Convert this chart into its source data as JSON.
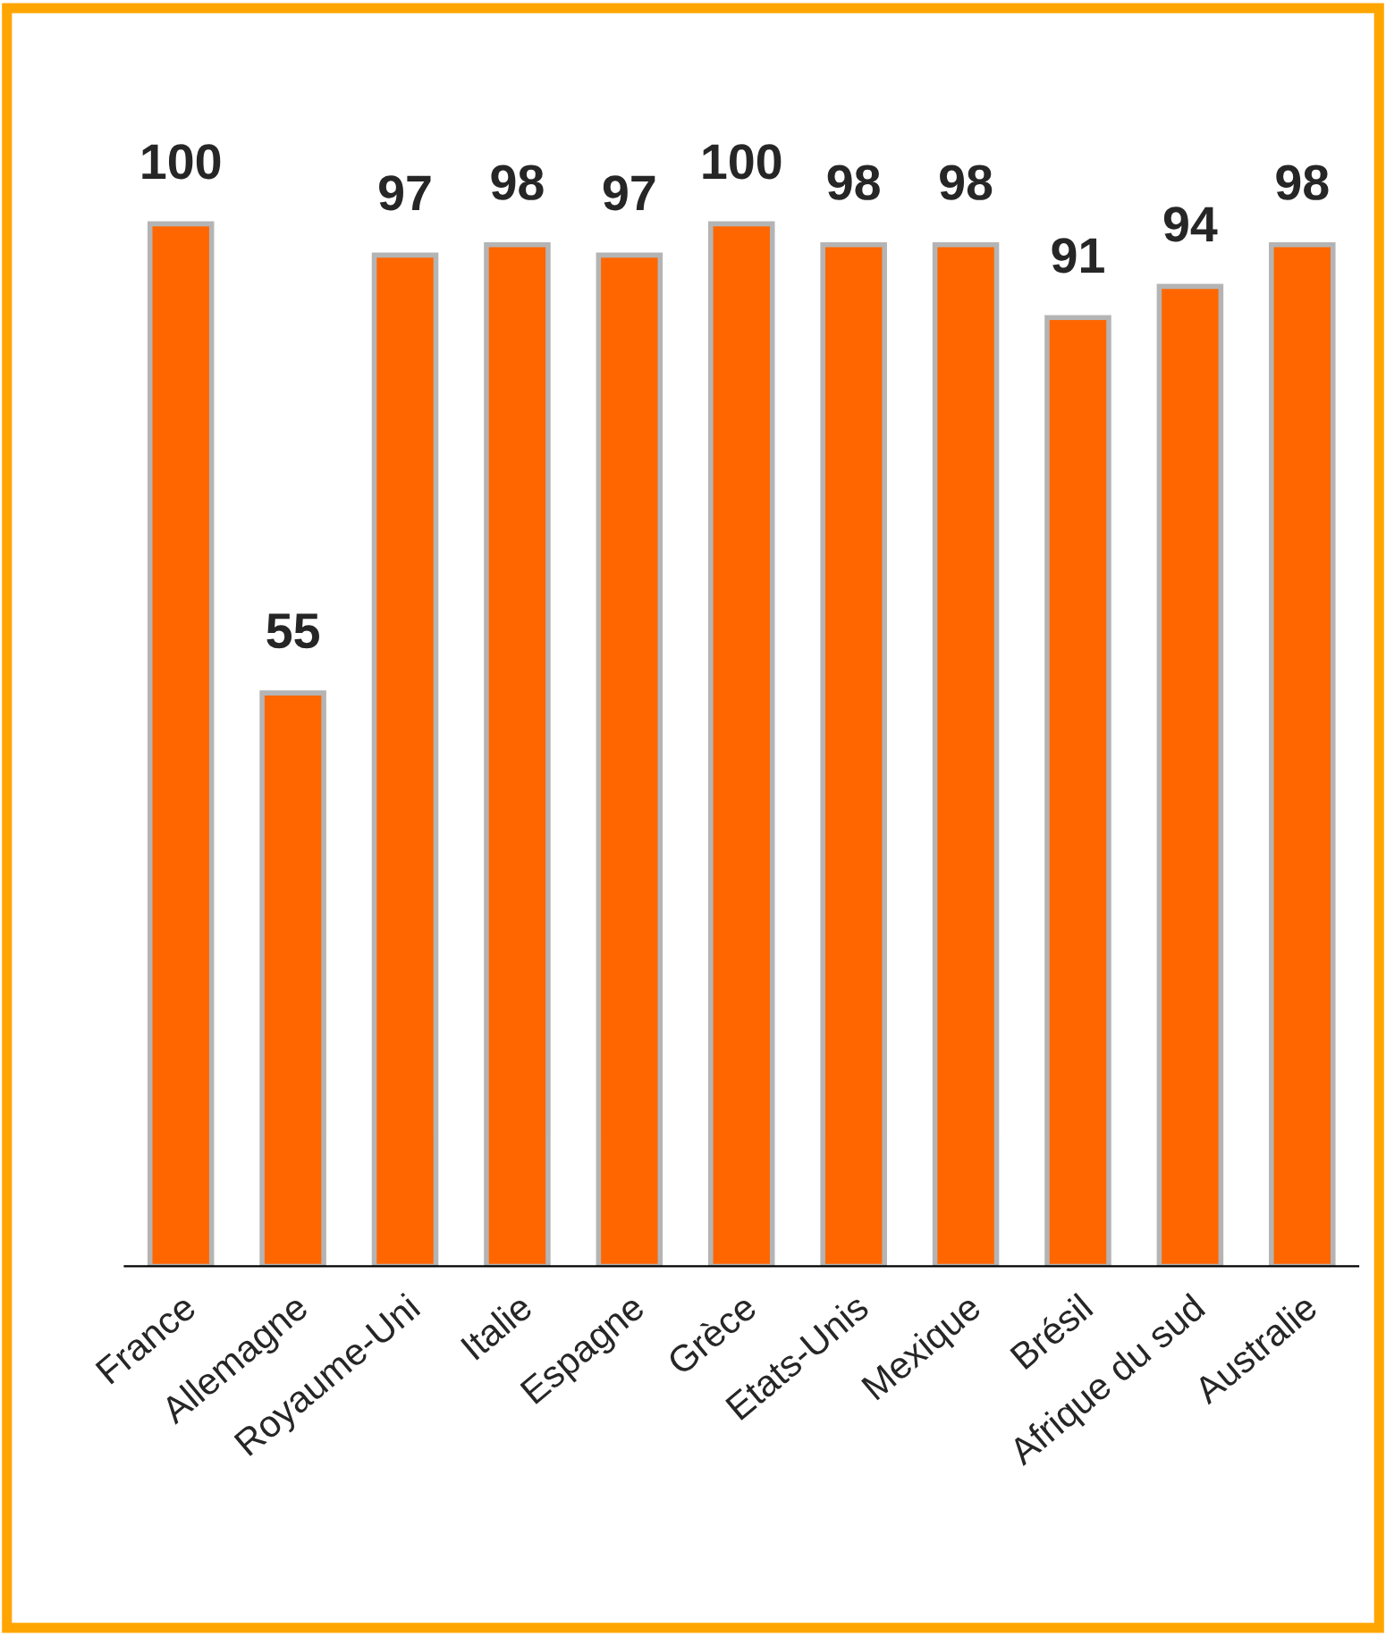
{
  "chart_data": {
    "type": "bar",
    "categories": [
      "France",
      "Allemagne",
      "Royaume-Uni",
      "Italie",
      "Espagne",
      "Grèce",
      "Etats-Unis",
      "Mexique",
      "Brésil",
      "Afrique du sud",
      "Australie"
    ],
    "values": [
      100,
      55,
      97,
      98,
      97,
      100,
      98,
      98,
      91,
      94,
      98
    ],
    "color": "#ff6600",
    "data_labels": true,
    "grid": false,
    "legend": false
  }
}
